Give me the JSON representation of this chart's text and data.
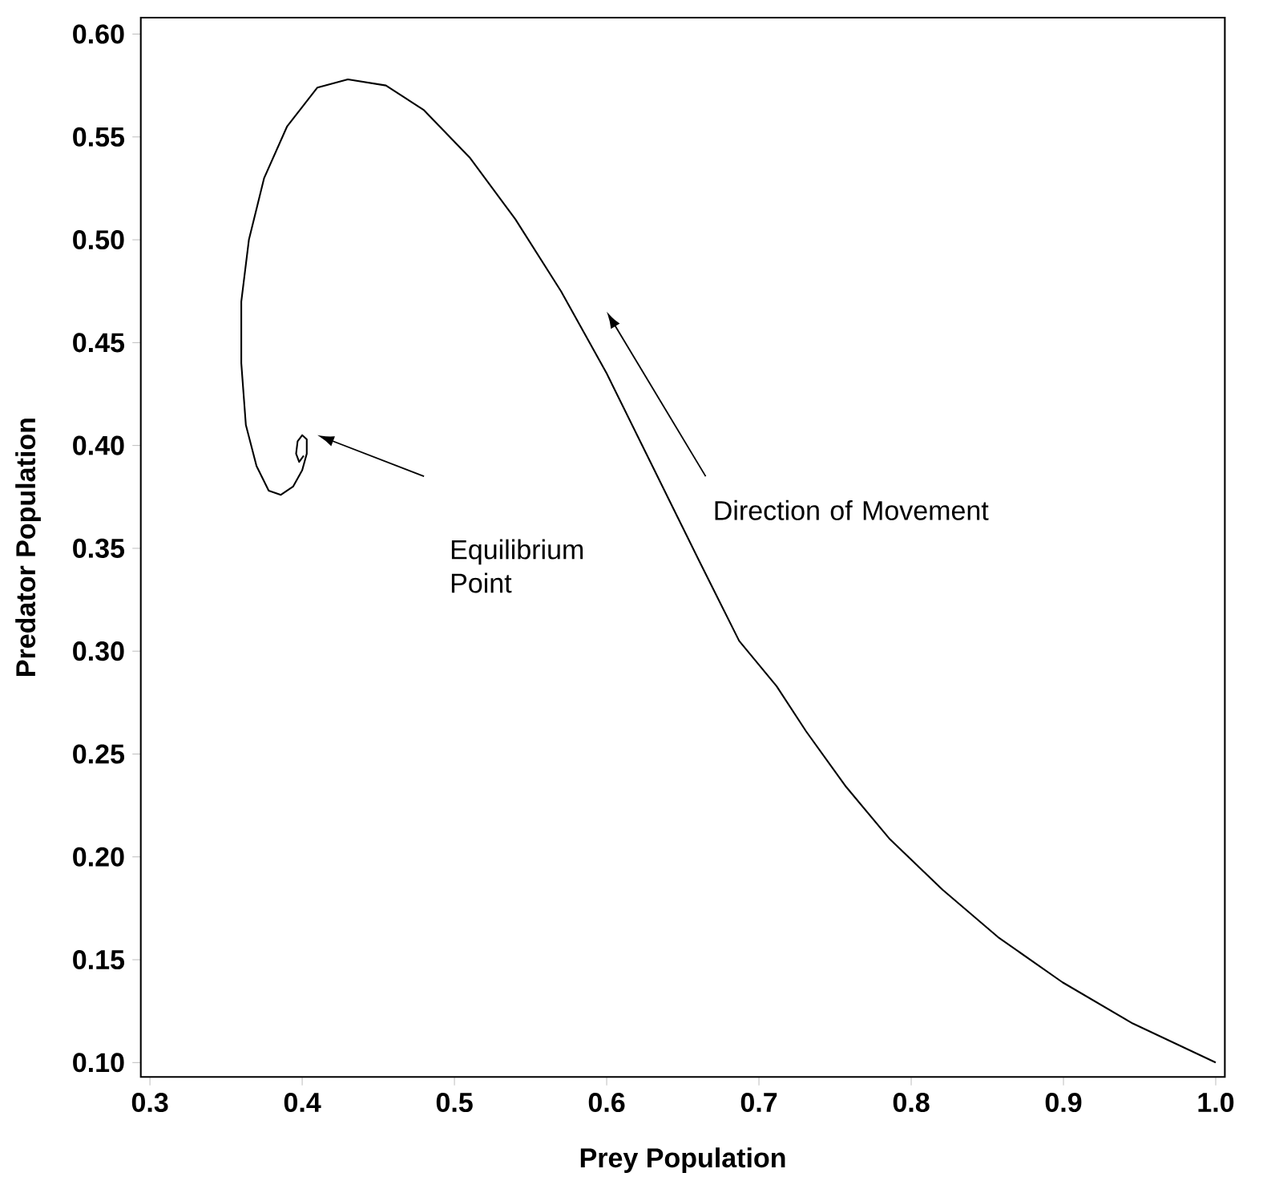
{
  "chart_data": {
    "type": "line",
    "xlabel": "Prey Population",
    "ylabel": "Predator Population",
    "xlim": [
      0.294,
      1.006
    ],
    "ylim": [
      0.093,
      0.608
    ],
    "xticks": [
      0.3,
      0.4,
      0.5,
      0.6,
      0.7,
      0.8,
      0.9,
      {
        "value": 1.0,
        "label": "1.0"
      }
    ],
    "yticks": [
      {
        "value": 0.1,
        "label": "0.10"
      },
      0.15,
      {
        "value": 0.2,
        "label": "0.20"
      },
      0.25,
      {
        "value": 0.3,
        "label": "0.30"
      },
      0.35,
      {
        "value": 0.4,
        "label": "0.40"
      },
      0.45,
      {
        "value": 0.5,
        "label": "0.50"
      },
      0.55,
      {
        "value": 0.6,
        "label": "0.60"
      }
    ],
    "marker": "none",
    "line_style": "solid",
    "series": [
      {
        "color": "#000000",
        "x": [
          1.0,
          0.9455,
          0.8994,
          0.857,
          0.8206,
          0.7855,
          0.7573,
          0.731,
          0.7116,
          0.687,
          0.66,
          0.63,
          0.6,
          0.57,
          0.54,
          0.51,
          0.48,
          0.455,
          0.43,
          0.41,
          0.39,
          0.375,
          0.365,
          0.36,
          0.36,
          0.363,
          0.37,
          0.378,
          0.386,
          0.394,
          0.4,
          0.403,
          0.403,
          0.4,
          0.397,
          0.396,
          0.398,
          0.401
        ],
        "values": [
          0.1,
          0.119,
          0.139,
          0.161,
          0.184,
          0.209,
          0.234,
          0.261,
          0.283,
          0.305,
          0.345,
          0.39,
          0.435,
          0.475,
          0.51,
          0.54,
          0.563,
          0.575,
          0.578,
          0.574,
          0.555,
          0.53,
          0.5,
          0.47,
          0.44,
          0.41,
          0.39,
          0.378,
          0.376,
          0.38,
          0.388,
          0.396,
          0.403,
          0.405,
          0.402,
          0.396,
          0.392,
          0.395
        ]
      }
    ],
    "annotations": [
      "Equilibrium Point",
      "Direction of Movement"
    ]
  }
}
